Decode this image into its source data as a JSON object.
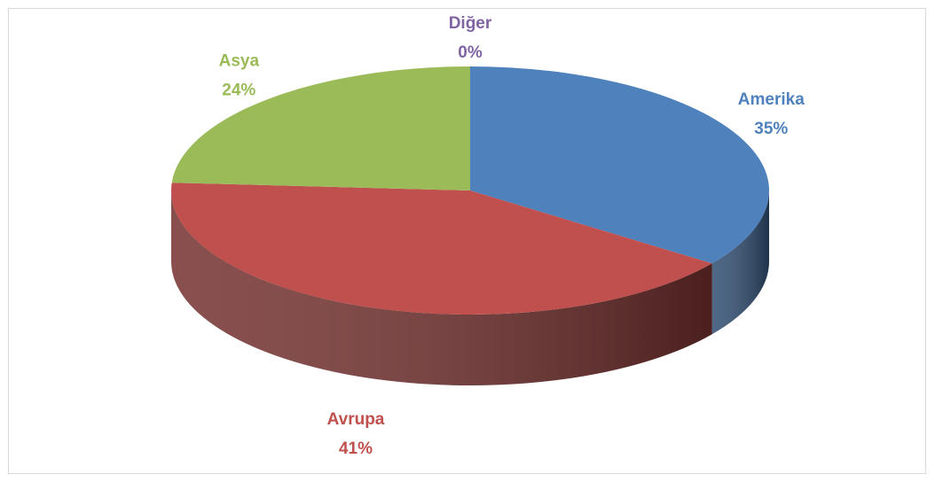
{
  "chart_data": {
    "type": "pie",
    "categories": [
      "Amerika",
      "Avrupa",
      "Asya",
      "Diğer"
    ],
    "values": [
      35,
      41,
      24,
      0
    ],
    "value_labels": [
      "35%",
      "41%",
      "24%",
      "0%"
    ],
    "colors": [
      "#4f81bd",
      "#c0504d",
      "#9bbb59",
      "#8064a2"
    ],
    "three_d": true
  }
}
